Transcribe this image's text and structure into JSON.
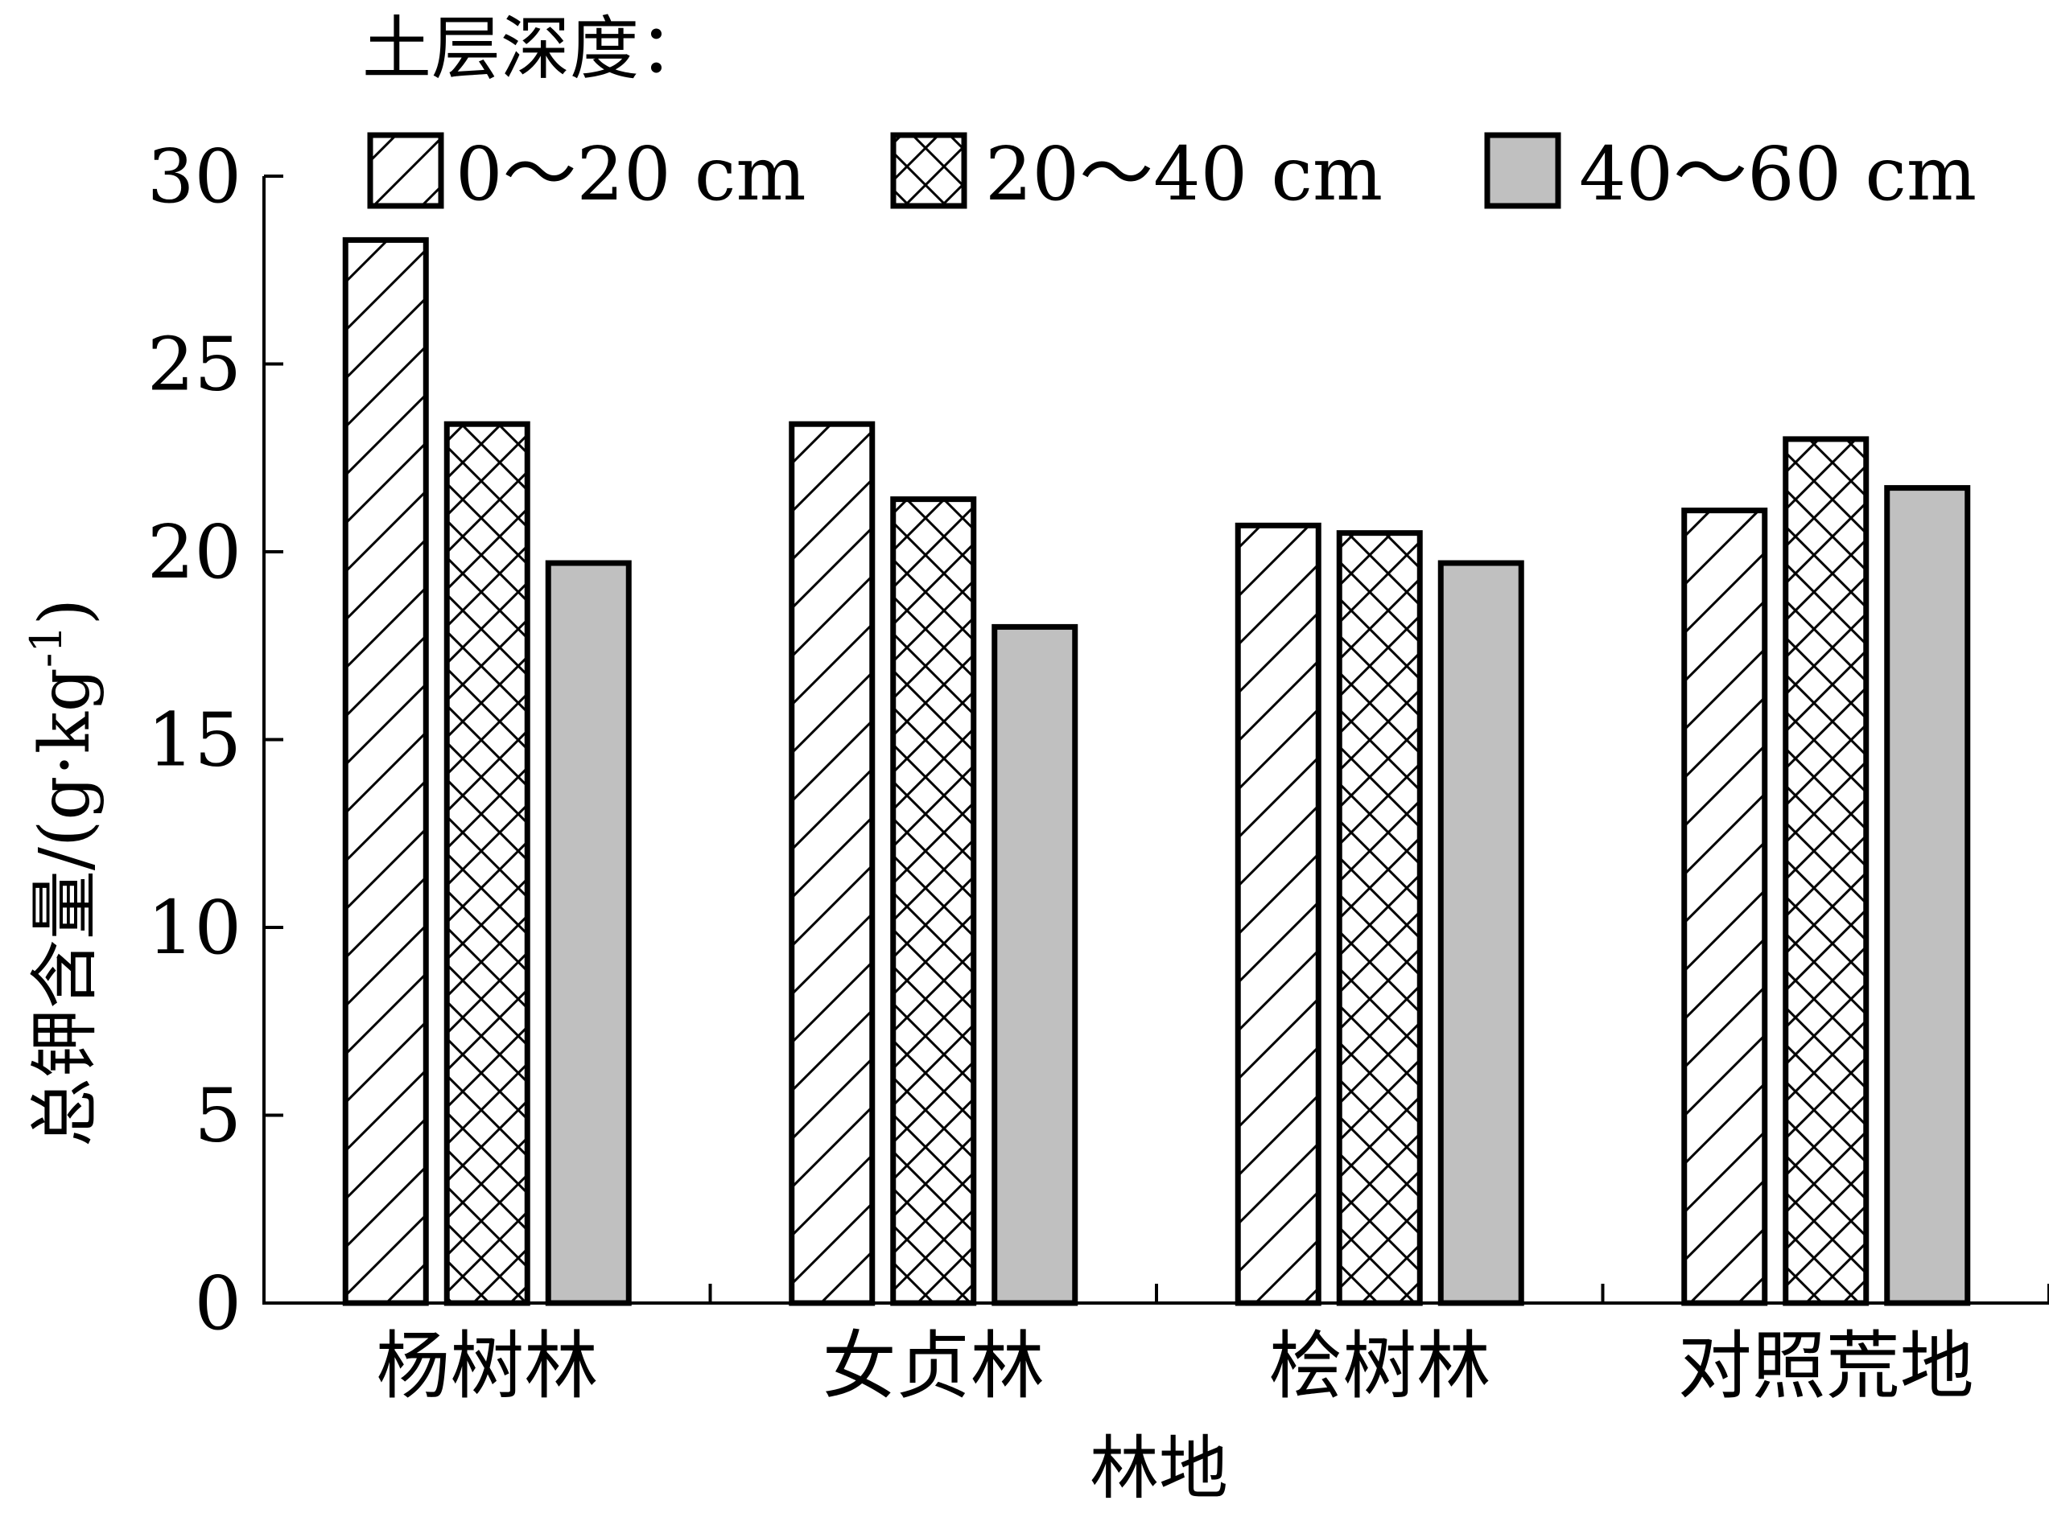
{
  "chart_data": {
    "type": "bar",
    "title": "",
    "legend_title": "土层深度：",
    "legend_position": "top",
    "xlabel": "林地",
    "ylabel": "总钾含量/(g·kg⁻¹)",
    "ylabel_main": "总钾含量/(g·kg",
    "ylabel_sup": "-1",
    "ylabel_close": ")",
    "ylim": [
      0,
      30
    ],
    "yticks": [
      0,
      5,
      10,
      15,
      20,
      25,
      30
    ],
    "ytick_labels": [
      "0",
      "5",
      "10",
      "15",
      "20",
      "25",
      "30"
    ],
    "categories": [
      "杨树林",
      "女贞林",
      "桧树林",
      "对照荒地"
    ],
    "series": [
      {
        "name": "0～20 cm",
        "pattern": "diagonal-hatch",
        "values": [
          28.3,
          23.4,
          20.7,
          21.1
        ]
      },
      {
        "name": "20～40 cm",
        "pattern": "cross-hatch",
        "values": [
          23.4,
          21.4,
          20.5,
          23.0
        ]
      },
      {
        "name": "40～60 cm",
        "pattern": "solid-gray",
        "values": [
          19.7,
          18.0,
          19.7,
          21.7
        ]
      }
    ],
    "grid": false,
    "colors": {
      "bar_stroke": "#000000",
      "gray_fill": "#c0c0c0",
      "background": "#ffffff"
    }
  }
}
